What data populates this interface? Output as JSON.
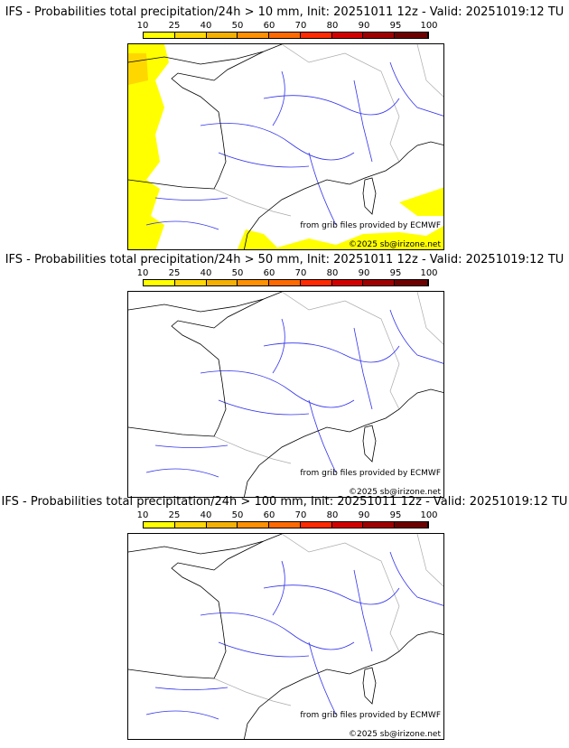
{
  "colorbar": {
    "ticks": [
      "10",
      "25",
      "40",
      "50",
      "60",
      "70",
      "80",
      "90",
      "95",
      "100"
    ],
    "colors": [
      "#ffff00",
      "#ffd700",
      "#f5b000",
      "#ff9000",
      "#ff6a00",
      "#ff2a00",
      "#d40000",
      "#a00000",
      "#6e0000"
    ]
  },
  "panels": [
    {
      "title": "IFS - Probabilities total precipitation/24h > 10 mm, Init: 20251011 12z - Valid: 20251019:12 TU",
      "has_precip": true
    },
    {
      "title": "IFS - Probabilities total precipitation/24h > 50 mm, Init: 20251011 12z - Valid: 20251019:12 TU",
      "has_precip": false
    },
    {
      "title": "IFS - Probabilities total precipitation/24h > 100 mm, Init: 20251011 12z - Valid: 20251019:12 TU",
      "has_precip": false
    }
  ],
  "credits": {
    "source": "from grib files provided by ECMWF",
    "copyright": "©2025 sb@irizone.net"
  }
}
